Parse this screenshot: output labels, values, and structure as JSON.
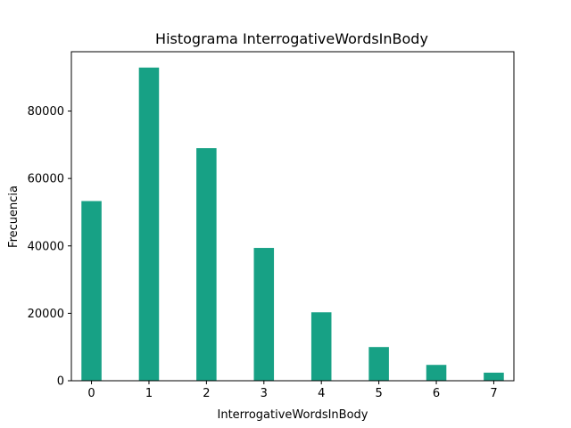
{
  "chart_data": {
    "type": "bar",
    "title": "Histograma InterrogativeWordsInBody",
    "xlabel": "InterrogativeWordsInBody",
    "ylabel": "Frecuencia",
    "bars": [
      {
        "x": 0,
        "value": 53300
      },
      {
        "x": 1,
        "value": 92900
      },
      {
        "x": 2,
        "value": 69000
      },
      {
        "x": 3,
        "value": 39400
      },
      {
        "x": 4,
        "value": 20300
      },
      {
        "x": 5,
        "value": 10000
      },
      {
        "x": 6,
        "value": 4700
      },
      {
        "x": 7,
        "value": 2400
      }
    ],
    "bar_width": 0.35,
    "xlim": [
      -0.35,
      7.35
    ],
    "ylim": [
      0,
      97600
    ],
    "xticks": [
      "0",
      "1",
      "2",
      "3",
      "4",
      "5",
      "6",
      "7"
    ],
    "yticks": [
      "0",
      "20000",
      "40000",
      "60000",
      "80000"
    ],
    "grid": false,
    "color": "#17a185"
  }
}
